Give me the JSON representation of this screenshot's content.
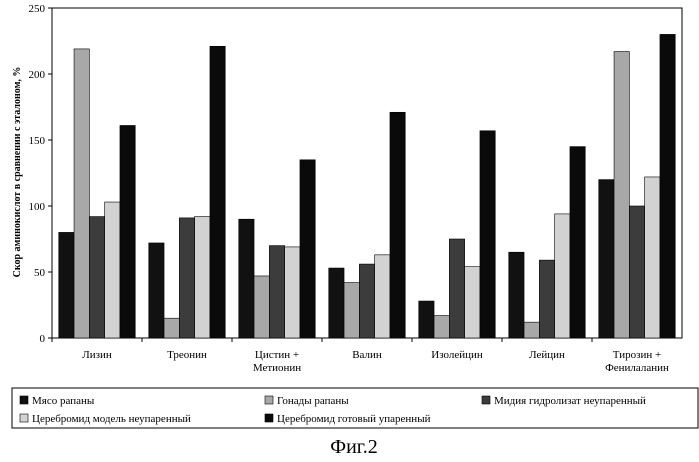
{
  "chart_data": {
    "type": "bar",
    "ylabel": "Скор аминокислот в сравнении с эталоном, %",
    "ylim": [
      0,
      250
    ],
    "yticks": [
      0,
      50,
      100,
      150,
      200,
      250
    ],
    "grid": false,
    "legend_position": "bottom",
    "categories": [
      [
        "Лизин"
      ],
      [
        "Треонин"
      ],
      [
        "Цистин +",
        "Метионин"
      ],
      [
        "Валин"
      ],
      [
        "Изолейцин"
      ],
      [
        "Лейцин"
      ],
      [
        "Тирозин +",
        "Фенилаланин"
      ]
    ],
    "series": [
      {
        "name": "Мясо рапаны",
        "color": "#111111",
        "values": [
          80,
          72,
          90,
          53,
          28,
          65,
          120
        ]
      },
      {
        "name": "Гонады рапаны",
        "color": "#a8a8a8",
        "values": [
          219,
          15,
          47,
          42,
          17,
          12,
          217
        ]
      },
      {
        "name": "Мидия гидролизат неупаренный",
        "color": "#3c3c3c",
        "values": [
          92,
          91,
          70,
          56,
          75,
          59,
          100
        ]
      },
      {
        "name": "Церебромид модель неупаренный",
        "color": "#d2d2d2",
        "values": [
          103,
          92,
          69,
          63,
          54,
          94,
          122
        ]
      },
      {
        "name": "Церебромид готовый упаренный",
        "color": "#0a0a0a",
        "values": [
          161,
          221,
          135,
          171,
          157,
          145,
          230
        ]
      }
    ]
  },
  "caption": "Фиг.2"
}
